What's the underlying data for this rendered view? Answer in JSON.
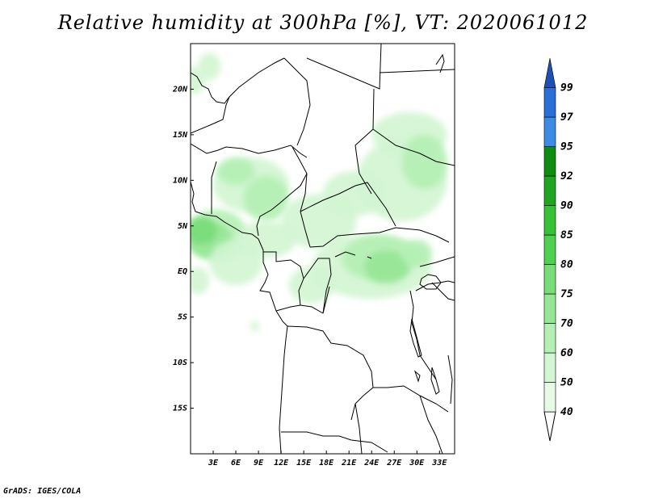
{
  "title": "Relative humidity at 300hPa [%], VT: 2020061012",
  "credit": "GrADS: IGES/COLA",
  "map": {
    "lon_range": [
      0,
      35
    ],
    "lat_range": [
      -20,
      25
    ],
    "x_ticks": [
      {
        "lon": 3,
        "label": "3E"
      },
      {
        "lon": 6,
        "label": "6E"
      },
      {
        "lon": 9,
        "label": "9E"
      },
      {
        "lon": 12,
        "label": "12E"
      },
      {
        "lon": 15,
        "label": "15E"
      },
      {
        "lon": 18,
        "label": "18E"
      },
      {
        "lon": 21,
        "label": "21E"
      },
      {
        "lon": 24,
        "label": "24E"
      },
      {
        "lon": 27,
        "label": "27E"
      },
      {
        "lon": 30,
        "label": "30E"
      },
      {
        "lon": 33,
        "label": "33E"
      }
    ],
    "y_ticks": [
      {
        "lat": 20,
        "label": "20N"
      },
      {
        "lat": 15,
        "label": "15N"
      },
      {
        "lat": 10,
        "label": "10N"
      },
      {
        "lat": 5,
        "label": "5N"
      },
      {
        "lat": 0,
        "label": "EQ"
      },
      {
        "lat": -5,
        "label": "5S"
      },
      {
        "lat": -10,
        "label": "10S"
      },
      {
        "lat": -15,
        "label": "15S"
      }
    ]
  },
  "colorbar": {
    "levels": [
      {
        "label": "40",
        "color": "#e6fae6"
      },
      {
        "label": "50",
        "color": "#d2f5d2"
      },
      {
        "label": "60",
        "color": "#b4f0b4"
      },
      {
        "label": "70",
        "color": "#96e696"
      },
      {
        "label": "75",
        "color": "#78dc78"
      },
      {
        "label": "80",
        "color": "#50d050"
      },
      {
        "label": "85",
        "color": "#37c137"
      },
      {
        "label": "90",
        "color": "#1fa51f"
      },
      {
        "label": "92",
        "color": "#0f8c0f"
      },
      {
        "label": "95",
        "color": "#3c8ce6"
      },
      {
        "label": "97",
        "color": "#2a6ed8"
      },
      {
        "label": "99",
        "color": "#1e50b4"
      }
    ]
  },
  "humid_areas": [
    {
      "lon": 2.5,
      "lat": 22.5,
      "rx": 1.5,
      "ry": 1.5,
      "level": 1
    },
    {
      "lon": 0.5,
      "lat": 21.0,
      "rx": 1.5,
      "ry": 1.5,
      "level": 1
    },
    {
      "lon": 8.0,
      "lat": 9.5,
      "rx": 5.0,
      "ry": 3.0,
      "level": 1
    },
    {
      "lon": 6.0,
      "lat": 11.0,
      "rx": 2.5,
      "ry": 1.5,
      "level": 2
    },
    {
      "lon": 10.0,
      "lat": 8.0,
      "rx": 3.0,
      "ry": 2.5,
      "level": 2
    },
    {
      "lon": 3.5,
      "lat": 4.0,
      "rx": 4.0,
      "ry": 2.8,
      "level": 2
    },
    {
      "lon": 2.5,
      "lat": 3.5,
      "rx": 3.0,
      "ry": 2.0,
      "level": 3
    },
    {
      "lon": 1.5,
      "lat": 4.5,
      "rx": 2.0,
      "ry": 1.5,
      "level": 4
    },
    {
      "lon": 6.0,
      "lat": 1.0,
      "rx": 3.5,
      "ry": 2.5,
      "level": 1
    },
    {
      "lon": 10.0,
      "lat": 3.5,
      "rx": 4.0,
      "ry": 2.0,
      "level": 1
    },
    {
      "lon": 17.0,
      "lat": 5.5,
      "rx": 5.0,
      "ry": 3.0,
      "level": 1
    },
    {
      "lon": 21.5,
      "lat": 8.5,
      "rx": 4.0,
      "ry": 2.5,
      "level": 1
    },
    {
      "lon": 28.0,
      "lat": 10.0,
      "rx": 6.0,
      "ry": 4.5,
      "level": 1
    },
    {
      "lon": 29.0,
      "lat": 15.0,
      "rx": 5.0,
      "ry": 2.5,
      "level": 1
    },
    {
      "lon": 31.0,
      "lat": 12.0,
      "rx": 3.0,
      "ry": 3.0,
      "level": 2
    },
    {
      "lon": 24.0,
      "lat": 0.5,
      "rx": 8.0,
      "ry": 3.5,
      "level": 1
    },
    {
      "lon": 25.0,
      "lat": 1.5,
      "rx": 5.0,
      "ry": 2.5,
      "level": 2
    },
    {
      "lon": 26.0,
      "lat": 0.5,
      "rx": 3.0,
      "ry": 1.8,
      "level": 3
    },
    {
      "lon": 30.0,
      "lat": 2.0,
      "rx": 2.0,
      "ry": 1.5,
      "level": 2
    },
    {
      "lon": 16.0,
      "lat": -1.5,
      "rx": 3.0,
      "ry": 2.0,
      "level": 1
    },
    {
      "lon": 1.0,
      "lat": -1.0,
      "rx": 1.5,
      "ry": 1.5,
      "level": 1
    },
    {
      "lon": 8.5,
      "lat": -6.0,
      "rx": 0.6,
      "ry": 0.6,
      "level": 1
    }
  ]
}
